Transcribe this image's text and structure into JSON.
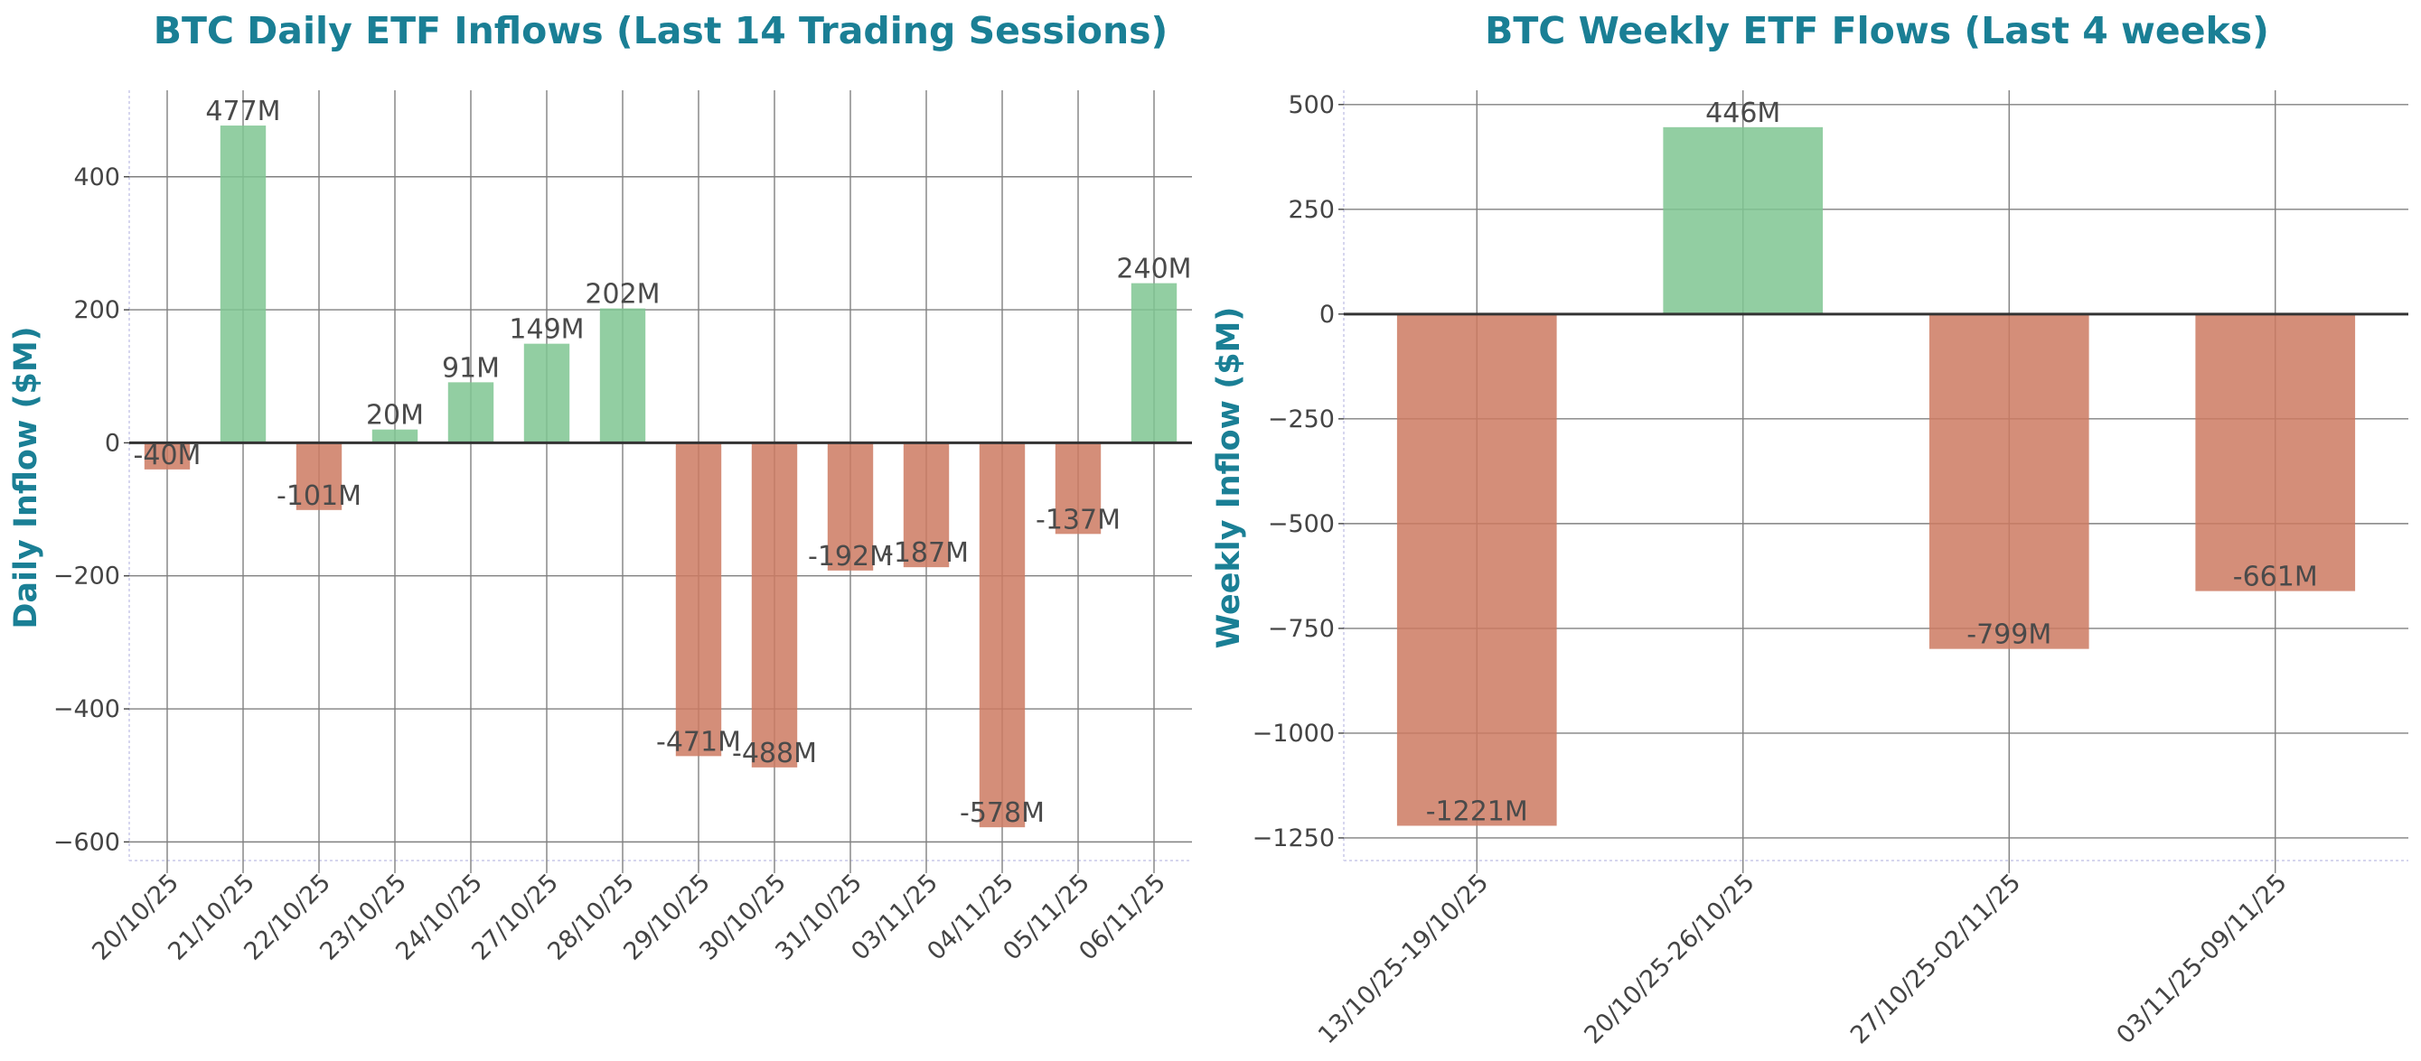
{
  "colors": {
    "title": "#1a7f95",
    "positive": "#7fc692",
    "negative": "#cc7a62",
    "grid": "#808080",
    "zero_line": "#333333",
    "text": "#444444"
  },
  "chart_data": [
    {
      "type": "bar",
      "title": "BTC Daily ETF Inflows (Last 14 Trading Sessions)",
      "xlabel": "",
      "ylabel": "Daily Inflow ($M)",
      "categories": [
        "20/10/25",
        "21/10/25",
        "22/10/25",
        "23/10/25",
        "24/10/25",
        "27/10/25",
        "28/10/25",
        "29/10/25",
        "30/10/25",
        "31/10/25",
        "03/11/25",
        "04/11/25",
        "05/11/25",
        "06/11/25"
      ],
      "values": [
        -40,
        477,
        -101,
        20,
        91,
        149,
        202,
        -471,
        -488,
        -192,
        -187,
        -578,
        -137,
        240
      ],
      "data_labels": [
        "-40M",
        "477M",
        "-101M",
        "20M",
        "91M",
        "149M",
        "202M",
        "-471M",
        "-488M",
        "-192M",
        "-187M",
        "-578M",
        "-137M",
        "240M"
      ],
      "yticks": [
        -600,
        -400,
        -200,
        0,
        200,
        400
      ],
      "ytick_labels": [
        "−600",
        "−400",
        "−200",
        "0",
        "200",
        "400"
      ],
      "ylim": [
        -628,
        530
      ],
      "grid": true
    },
    {
      "type": "bar",
      "title": "BTC Weekly ETF Flows (Last 4 weeks)",
      "xlabel": "",
      "ylabel": "Weekly Inflow ($M)",
      "categories": [
        "13/10/25-19/10/25",
        "20/10/25-26/10/25",
        "27/10/25-02/11/25",
        "03/11/25-09/11/25"
      ],
      "values": [
        -1221,
        446,
        -799,
        -661
      ],
      "data_labels": [
        "-1221M",
        "446M",
        "-799M",
        "-661M"
      ],
      "yticks": [
        -1250,
        -1000,
        -750,
        -500,
        -250,
        0,
        250,
        500
      ],
      "ytick_labels": [
        "−1250",
        "−1000",
        "−750",
        "−500",
        "−250",
        "0",
        "250",
        "500"
      ],
      "ylim": [
        -1304,
        534
      ],
      "grid": true
    }
  ]
}
